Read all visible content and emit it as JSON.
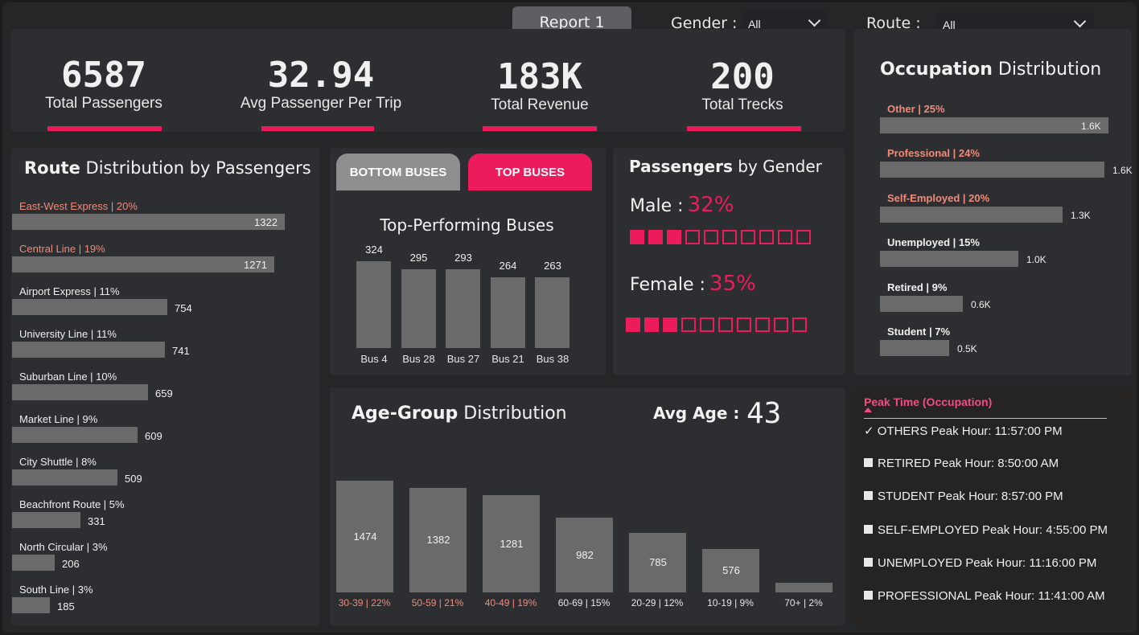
{
  "header": {
    "report_button": "Report 1",
    "gender_filter": {
      "label": "Gender :",
      "value": "All"
    },
    "route_filter": {
      "label": "Route :",
      "value": "All"
    }
  },
  "kpis": [
    {
      "value": "6587",
      "label": "Total Passengers"
    },
    {
      "value": "32.94",
      "label": "Avg Passenger Per Trip"
    },
    {
      "value": "183K",
      "label": "Total Revenue"
    },
    {
      "value": "200",
      "label": "Total Trecks"
    }
  ],
  "route_chart": {
    "title_bold": "Route",
    "title_rest": "Distribution by Passengers",
    "chart_data": {
      "type": "bar",
      "orientation": "horizontal",
      "categories": [
        "East-West Express | 20%",
        "Central Line | 19%",
        "Airport Express | 11%",
        "University Line | 11%",
        "Suburban Line | 10%",
        "Market Line | 9%",
        "City Shuttle | 8%",
        "Beachfront Route | 5%",
        "North Circular | 3%",
        "South Line | 3%"
      ],
      "values": [
        1322,
        1271,
        754,
        741,
        659,
        609,
        509,
        331,
        206,
        185
      ],
      "labels": [
        "1322",
        "1271",
        "754",
        "741",
        "659",
        "609",
        "509",
        "331",
        "206",
        "185"
      ],
      "highlight_color": "#f08b7a",
      "highlighted_count": 2
    }
  },
  "buses": {
    "bottom_button": "BOTTOM BUSES",
    "top_button": "TOP BUSES",
    "title": "Top-Performing Buses",
    "chart_data": {
      "type": "bar",
      "categories": [
        "Bus 4",
        "Bus 28",
        "Bus 27",
        "Bus 21",
        "Bus 38"
      ],
      "values": [
        324,
        295,
        293,
        264,
        263
      ],
      "labels": [
        "324",
        "295",
        "293",
        "264",
        "263"
      ]
    }
  },
  "gender": {
    "title_bold": "Passengers",
    "title_rest": "by Gender",
    "male_label": "Male :",
    "male_value": "32%",
    "male_filled": 3,
    "female_label": "Female :",
    "female_value": "35%",
    "female_filled": 3,
    "total_squares": 10,
    "accent": "#ec1c5c"
  },
  "occupation": {
    "title_bold": "Occupation",
    "title_rest": "Distribution",
    "chart_data": {
      "type": "bar",
      "orientation": "horizontal",
      "categories": [
        "Other | 25%",
        "Professional | 24%",
        "Self-Employed | 20%",
        "Unemployed | 15%",
        "Retired | 9%",
        "Student | 7%"
      ],
      "values": [
        1650,
        1620,
        1320,
        1000,
        600,
        500
      ],
      "labels": [
        "1.6K",
        "1.6K",
        "1.3K",
        "1.0K",
        "0.6K",
        "0.5K"
      ],
      "highlighted_count": 3
    }
  },
  "age": {
    "title_bold": "Age-Group",
    "title_rest": "Distribution",
    "avg_label": "Avg Age :",
    "avg_value": "43",
    "chart_data": {
      "type": "bar",
      "categories": [
        "30-39 | 22%",
        "50-59 | 21%",
        "40-49 | 19%",
        "60-69 | 15%",
        "20-29 | 12%",
        "10-19 | 9%",
        "70+ | 2%"
      ],
      "values": [
        1474,
        1382,
        1281,
        982,
        785,
        576,
        130
      ],
      "labels": [
        "1474",
        "1382",
        "1281",
        "982",
        "785",
        "576",
        ""
      ],
      "highlighted_count": 3
    }
  },
  "peak": {
    "header": "Peak Time (Occupation)",
    "items": [
      {
        "text": "OTHERS Peak Hour: 11:57:00 PM",
        "checked": true
      },
      {
        "text": "RETIRED Peak Hour: 8:50:00 AM",
        "checked": false
      },
      {
        "text": "STUDENT Peak Hour: 8:57:00 PM",
        "checked": false
      },
      {
        "text": "SELF-EMPLOYED Peak Hour: 4:55:00 PM",
        "checked": false
      },
      {
        "text": "UNEMPLOYED Peak Hour: 11:16:00 PM",
        "checked": false
      },
      {
        "text": "PROFESSIONAL Peak Hour: 11:41:00 AM",
        "checked": false
      }
    ]
  }
}
